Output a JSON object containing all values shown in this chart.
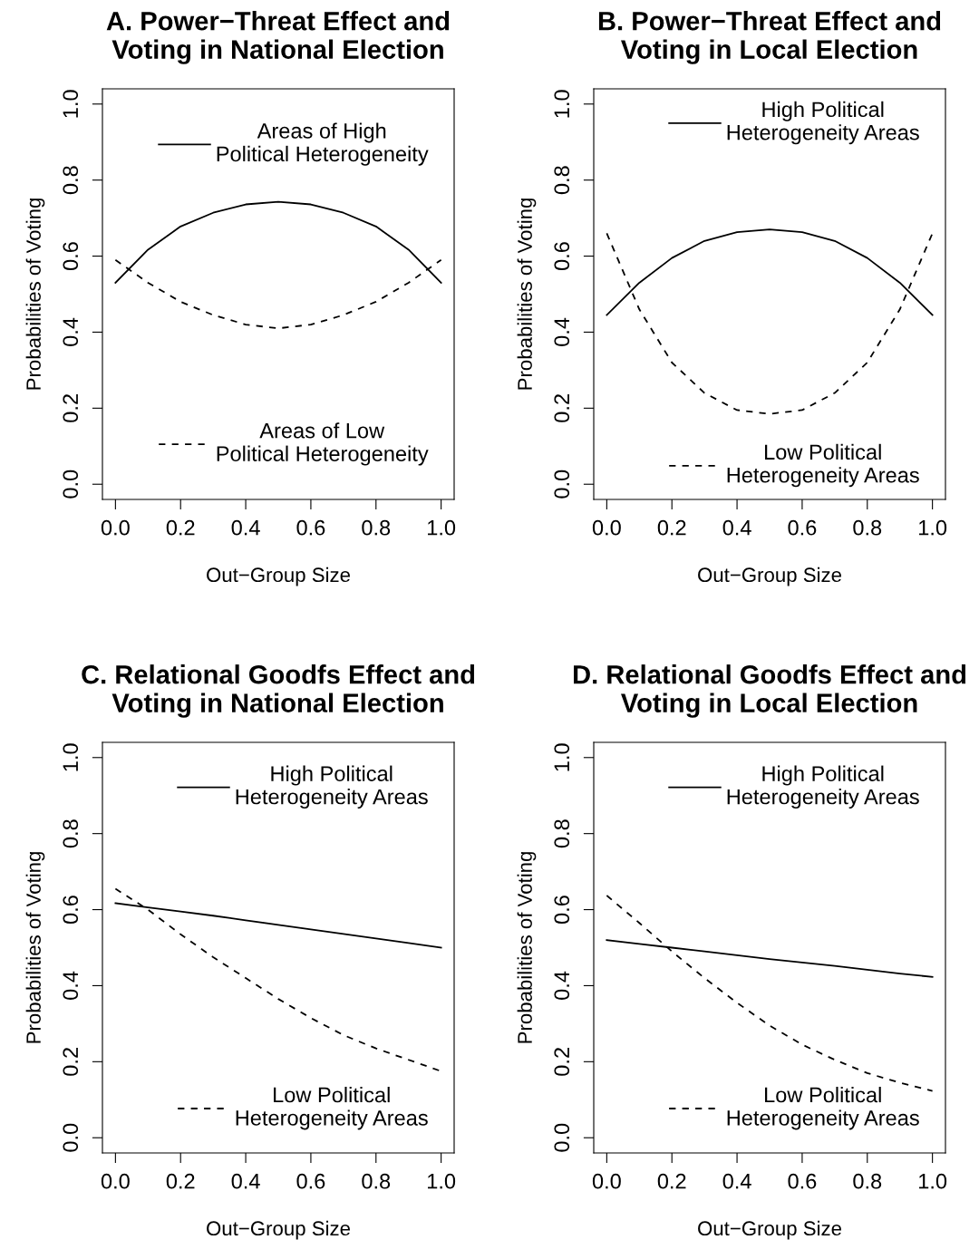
{
  "chart_data": [
    {
      "type": "line",
      "title": "A. Power−Threat Effect and\nVoting in National Election",
      "xlabel": "Out−Group Size",
      "ylabel": "Probabilities of Voting",
      "x": [
        0,
        0.1,
        0.2,
        0.3,
        0.4,
        0.5,
        0.6,
        0.7,
        0.8,
        0.9,
        1.0
      ],
      "series": [
        {
          "name": "Areas of High\nPolitical Heterogeneity",
          "color": "#000000",
          "line_style": "solid",
          "values": [
            0.53,
            0.617,
            0.678,
            0.714,
            0.736,
            0.743,
            0.736,
            0.714,
            0.678,
            0.617,
            0.53
          ]
        },
        {
          "name": "Areas of Low\nPolitical Heterogeneity",
          "color": "#000000",
          "line_style": "dashed",
          "values": [
            0.59,
            0.53,
            0.48,
            0.445,
            0.42,
            0.41,
            0.42,
            0.445,
            0.48,
            0.53,
            0.59
          ]
        }
      ],
      "xlim": [
        -0.04,
        1.04
      ],
      "ylim": [
        -0.04,
        1.04
      ],
      "xticks": [
        {
          "value": 0,
          "label": "0.0"
        },
        {
          "value": 0.2,
          "label": "0.2"
        },
        {
          "value": 0.4,
          "label": "0.4"
        },
        {
          "value": 0.6,
          "label": "0.6"
        },
        {
          "value": 0.8,
          "label": "0.8"
        },
        {
          "value": 1.0,
          "label": "1.0"
        }
      ],
      "yticks": [
        {
          "value": 0,
          "label": "0.0"
        },
        {
          "value": 0.2,
          "label": "0.2"
        },
        {
          "value": 0.4,
          "label": "0.4"
        },
        {
          "value": 0.6,
          "label": "0.6"
        },
        {
          "value": 0.8,
          "label": "0.8"
        },
        {
          "value": 1.0,
          "label": "1.0"
        }
      ],
      "grid": false,
      "legend": "right",
      "marker": "none"
    },
    {
      "type": "line",
      "title": "B. Power−Threat Effect and\nVoting in Local Election",
      "xlabel": "Out−Group Size",
      "ylabel": "Probabilities of Voting",
      "x": [
        0,
        0.1,
        0.2,
        0.3,
        0.4,
        0.5,
        0.6,
        0.7,
        0.8,
        0.9,
        1.0
      ],
      "series": [
        {
          "name": "High Political\nHeterogeneity Areas",
          "color": "#000000",
          "line_style": "solid",
          "values": [
            0.445,
            0.53,
            0.595,
            0.64,
            0.663,
            0.67,
            0.663,
            0.64,
            0.595,
            0.53,
            0.445
          ]
        },
        {
          "name": "Low Political\nHeterogeneity Areas",
          "color": "#000000",
          "line_style": "dashed",
          "values": [
            0.66,
            0.46,
            0.32,
            0.24,
            0.195,
            0.185,
            0.195,
            0.24,
            0.32,
            0.46,
            0.66
          ]
        }
      ],
      "xlim": [
        -0.04,
        1.04
      ],
      "ylim": [
        -0.04,
        1.04
      ],
      "xticks": [
        {
          "value": 0,
          "label": "0.0"
        },
        {
          "value": 0.2,
          "label": "0.2"
        },
        {
          "value": 0.4,
          "label": "0.4"
        },
        {
          "value": 0.6,
          "label": "0.6"
        },
        {
          "value": 0.8,
          "label": "0.8"
        },
        {
          "value": 1.0,
          "label": "1.0"
        }
      ],
      "yticks": [
        {
          "value": 0,
          "label": "0.0"
        },
        {
          "value": 0.2,
          "label": "0.2"
        },
        {
          "value": 0.4,
          "label": "0.4"
        },
        {
          "value": 0.6,
          "label": "0.6"
        },
        {
          "value": 0.8,
          "label": "0.8"
        },
        {
          "value": 1.0,
          "label": "1.0"
        }
      ],
      "grid": false,
      "legend": "right",
      "marker": "none"
    },
    {
      "type": "line",
      "title": "C. Relational Goodfs Effect and\nVoting in National Election",
      "xlabel": "Out−Group Size",
      "ylabel": "Probabilities of Voting",
      "x": [
        0,
        0.1,
        0.2,
        0.3,
        0.4,
        0.5,
        0.6,
        0.7,
        0.8,
        0.9,
        1.0
      ],
      "series": [
        {
          "name": "High Political\nHeterogeneity Areas",
          "color": "#000000",
          "line_style": "solid",
          "values": [
            0.617,
            0.606,
            0.595,
            0.584,
            0.572,
            0.56,
            0.548,
            0.536,
            0.524,
            0.512,
            0.5
          ]
        },
        {
          "name": "Low Political\nHeterogeneity Areas",
          "color": "#000000",
          "line_style": "dashed",
          "values": [
            0.655,
            0.6,
            0.535,
            0.475,
            0.42,
            0.365,
            0.315,
            0.27,
            0.235,
            0.205,
            0.175
          ]
        }
      ],
      "xlim": [
        -0.04,
        1.04
      ],
      "ylim": [
        -0.04,
        1.04
      ],
      "xticks": [
        {
          "value": 0,
          "label": "0.0"
        },
        {
          "value": 0.2,
          "label": "0.2"
        },
        {
          "value": 0.4,
          "label": "0.4"
        },
        {
          "value": 0.6,
          "label": "0.6"
        },
        {
          "value": 0.8,
          "label": "0.8"
        },
        {
          "value": 1.0,
          "label": "1.0"
        }
      ],
      "yticks": [
        {
          "value": 0,
          "label": "0.0"
        },
        {
          "value": 0.2,
          "label": "0.2"
        },
        {
          "value": 0.4,
          "label": "0.4"
        },
        {
          "value": 0.6,
          "label": "0.6"
        },
        {
          "value": 0.8,
          "label": "0.8"
        },
        {
          "value": 1.0,
          "label": "1.0"
        }
      ],
      "grid": false,
      "legend": "right",
      "marker": "none"
    },
    {
      "type": "line",
      "title": "D. Relational Goodfs Effect and\nVoting in Local Election",
      "xlabel": "Out−Group Size",
      "ylabel": "Probabilities of Voting",
      "x": [
        0,
        0.1,
        0.2,
        0.3,
        0.4,
        0.5,
        0.6,
        0.7,
        0.8,
        0.9,
        1.0
      ],
      "series": [
        {
          "name": "High Political\nHeterogeneity Areas",
          "color": "#000000",
          "line_style": "solid",
          "values": [
            0.52,
            0.51,
            0.5,
            0.49,
            0.48,
            0.47,
            0.461,
            0.452,
            0.442,
            0.432,
            0.423
          ]
        },
        {
          "name": "Low Political\nHeterogeneity Areas",
          "color": "#000000",
          "line_style": "dashed",
          "values": [
            0.637,
            0.565,
            0.49,
            0.42,
            0.355,
            0.295,
            0.245,
            0.205,
            0.17,
            0.145,
            0.123
          ]
        }
      ],
      "xlim": [
        -0.04,
        1.04
      ],
      "ylim": [
        -0.04,
        1.04
      ],
      "xticks": [
        {
          "value": 0,
          "label": "0.0"
        },
        {
          "value": 0.2,
          "label": "0.2"
        },
        {
          "value": 0.4,
          "label": "0.4"
        },
        {
          "value": 0.6,
          "label": "0.6"
        },
        {
          "value": 0.8,
          "label": "0.8"
        },
        {
          "value": 1.0,
          "label": "1.0"
        }
      ],
      "yticks": [
        {
          "value": 0,
          "label": "0.0"
        },
        {
          "value": 0.2,
          "label": "0.2"
        },
        {
          "value": 0.4,
          "label": "0.4"
        },
        {
          "value": 0.6,
          "label": "0.6"
        },
        {
          "value": 0.8,
          "label": "0.8"
        },
        {
          "value": 1.0,
          "label": "1.0"
        }
      ],
      "grid": false,
      "legend": "right",
      "marker": "none"
    }
  ]
}
